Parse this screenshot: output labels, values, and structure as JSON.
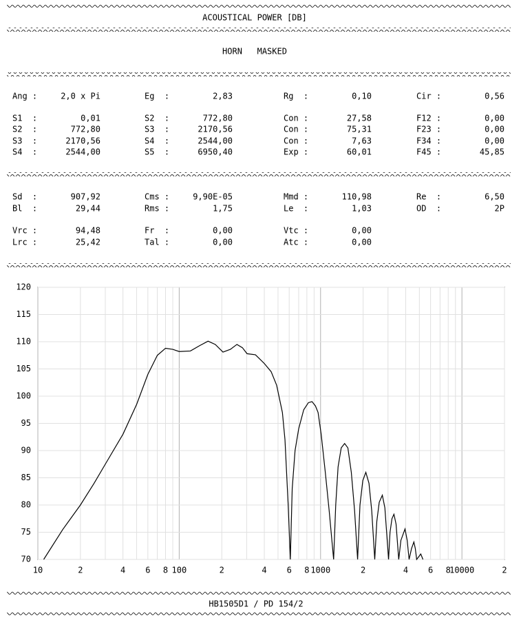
{
  "header": {
    "title": "ACOUSTICAL POWER [DB]",
    "subtitle": "HORN   MASKED"
  },
  "params": [
    [
      {
        "label": "Ang :",
        "value": "2,0 x Pi"
      },
      {
        "label": "Eg  :",
        "value": "2,83"
      },
      {
        "label": "Rg  :",
        "value": "0,10"
      },
      {
        "label": "Cir :",
        "value": "0,56"
      }
    ],
    [
      {
        "label": "S1  :",
        "value": "0,01"
      },
      {
        "label": "S2  :",
        "value": "772,80"
      },
      {
        "label": "Con :",
        "value": "27,58"
      },
      {
        "label": "F12 :",
        "value": "0,00"
      }
    ],
    [
      {
        "label": "S2  :",
        "value": "772,80"
      },
      {
        "label": "S3  :",
        "value": "2170,56"
      },
      {
        "label": "Con :",
        "value": "75,31"
      },
      {
        "label": "F23 :",
        "value": "0,00"
      }
    ],
    [
      {
        "label": "S3  :",
        "value": "2170,56"
      },
      {
        "label": "S4  :",
        "value": "2544,00"
      },
      {
        "label": "Con :",
        "value": "7,63"
      },
      {
        "label": "F34 :",
        "value": "0,00"
      }
    ],
    [
      {
        "label": "S4  :",
        "value": "2544,00"
      },
      {
        "label": "S5  :",
        "value": "6950,40"
      },
      {
        "label": "Exp :",
        "value": "60,01"
      },
      {
        "label": "F45 :",
        "value": "45,85"
      }
    ],
    [
      {
        "label": "Sd  :",
        "value": "907,92"
      },
      {
        "label": "Cms :",
        "value": "9,90E-05"
      },
      {
        "label": "Mmd :",
        "value": "110,98"
      },
      {
        "label": "Re  :",
        "value": "6,50"
      }
    ],
    [
      {
        "label": "Bl  :",
        "value": "29,44"
      },
      {
        "label": "Rms :",
        "value": "1,75"
      },
      {
        "label": "Le  :",
        "value": "1,03"
      },
      {
        "label": "OD  :",
        "value": "2P"
      }
    ],
    [
      {
        "label": "Vrc :",
        "value": "94,48"
      },
      {
        "label": "Fr  :",
        "value": "0,00"
      },
      {
        "label": "Vtc :",
        "value": "0,00"
      }
    ],
    [
      {
        "label": "Lrc :",
        "value": "25,42"
      },
      {
        "label": "Tal :",
        "value": "0,00"
      },
      {
        "label": "Atc :",
        "value": "0,00"
      }
    ]
  ],
  "footer": "HB1505D1 / PD 154/2",
  "chart_data": {
    "type": "line",
    "log_x": true,
    "grid": true,
    "color": "#000000",
    "xlim": [
      10,
      20000
    ],
    "ylim": [
      70,
      120
    ],
    "yticks": [
      70,
      75,
      80,
      85,
      90,
      95,
      100,
      105,
      110,
      115,
      120
    ],
    "xticks": [
      10,
      {
        "value": 20,
        "label": "2"
      },
      {
        "value": 40,
        "label": "4"
      },
      {
        "value": 60,
        "label": "6"
      },
      {
        "value": 80,
        "label": "8"
      },
      100,
      {
        "value": 200,
        "label": "2"
      },
      {
        "value": 400,
        "label": "4"
      },
      {
        "value": 600,
        "label": "6"
      },
      {
        "value": 800,
        "label": "8"
      },
      1000,
      {
        "value": 2000,
        "label": "2"
      },
      {
        "value": 4000,
        "label": "4"
      },
      {
        "value": 6000,
        "label": "6"
      },
      {
        "value": 8000,
        "label": "8"
      },
      10000,
      {
        "value": 20000,
        "label": "2"
      }
    ],
    "xminor_ticks": [
      30,
      50,
      70,
      90,
      300,
      500,
      700,
      900,
      3000,
      5000,
      7000,
      9000
    ],
    "x": [
      11,
      15,
      20,
      25,
      30,
      40,
      50,
      60,
      70,
      80,
      90,
      100,
      120,
      140,
      160,
      180,
      204,
      230,
      256,
      280,
      302,
      346,
      400,
      447,
      489,
      537,
      560,
      590,
      611,
      630,
      660,
      700,
      760,
      820,
      870,
      920,
      960,
      1010,
      1080,
      1150,
      1237,
      1280,
      1330,
      1400,
      1480,
      1560,
      1650,
      1740,
      1828,
      1900,
      1990,
      2090,
      2200,
      2300,
      2417,
      2500,
      2600,
      2735,
      2850,
      3027,
      3100,
      3200,
      3304,
      3420,
      3572,
      3700,
      3957,
      4100,
      4229,
      4400,
      4571,
      4680,
      4784,
      4950,
      5115,
      5300
    ],
    "values": [
      70,
      75.5,
      80,
      84,
      87.5,
      93,
      98.5,
      104,
      107.5,
      108.8,
      108.6,
      108.2,
      108.3,
      109.3,
      110.1,
      109.5,
      108.1,
      108.6,
      109.5,
      108.9,
      107.8,
      107.6,
      106,
      104.5,
      102,
      97,
      92,
      80,
      70,
      83,
      90,
      94,
      97.5,
      98.8,
      99,
      98.2,
      97,
      93,
      86,
      79,
      70,
      80,
      87,
      90.5,
      91.3,
      90.5,
      86,
      79,
      70,
      80,
      84.5,
      86,
      84,
      79,
      70,
      77,
      80.5,
      81.8,
      79.5,
      70,
      75,
      77.5,
      78.3,
      76.5,
      70,
      73.5,
      75.6,
      73.5,
      70,
      72,
      73.2,
      72,
      70,
      70.5,
      71,
      70
    ]
  }
}
